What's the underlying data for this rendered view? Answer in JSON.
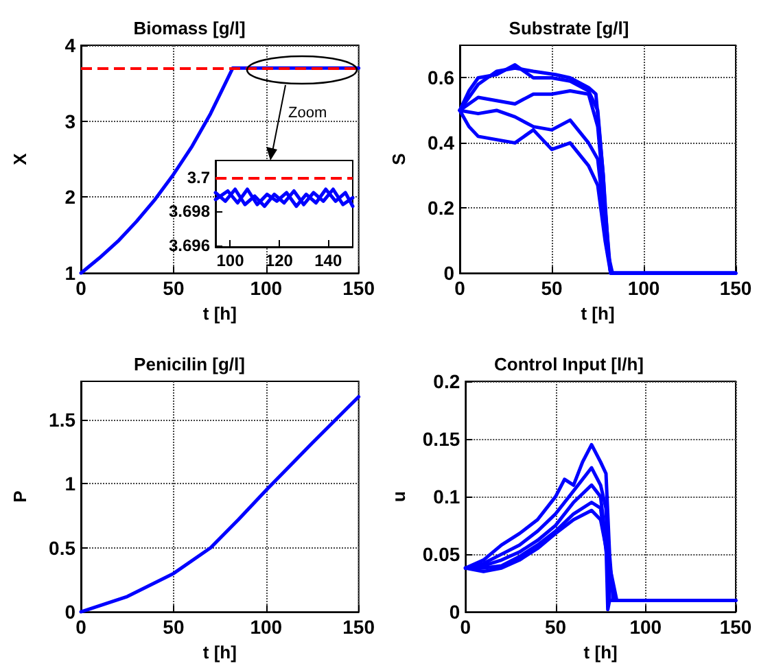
{
  "chart_data": [
    {
      "type": "line",
      "title": "Biomass [g/l]",
      "xlabel": "t [h]",
      "ylabel": "X",
      "xlim": [
        0,
        150
      ],
      "xticks": [
        0,
        50,
        100,
        150
      ],
      "ylim": [
        1,
        4
      ],
      "yticks": [
        1,
        2,
        3,
        4
      ],
      "grid": true,
      "annotations": [
        "Zoom"
      ],
      "ref_lines": [
        {
          "axis": "y",
          "value": 3.7,
          "color": "#ff0000",
          "line_style": "dashed"
        }
      ],
      "series": [
        {
          "color": "#0000ff",
          "x": [
            0,
            10,
            20,
            30,
            40,
            50,
            60,
            70,
            78,
            82,
            150
          ],
          "values": [
            1,
            1.2,
            1.42,
            1.68,
            1.97,
            2.3,
            2.67,
            3.1,
            3.5,
            3.7,
            3.7
          ]
        }
      ]
    },
    {
      "type": "line",
      "xlim": [
        94,
        150
      ],
      "xticks": [
        100,
        120,
        140
      ],
      "ylim": [
        3.6959,
        3.701
      ],
      "yticks": [
        3.696,
        3.698,
        3.7
      ],
      "ref_lines": [
        {
          "axis": "y",
          "value": 3.7,
          "color": "#ff0000",
          "line_style": "dashed"
        }
      ],
      "series": [
        {
          "color": "#0000ff",
          "x": [
            94,
            98,
            102,
            106,
            110,
            114,
            118,
            122,
            126,
            130,
            134,
            138,
            142,
            146,
            150
          ],
          "values": [
            3.6991,
            3.6986,
            3.6993,
            3.6984,
            3.6989,
            3.6983,
            3.699,
            3.6985,
            3.6992,
            3.6984,
            3.6991,
            3.6986,
            3.6993,
            3.6984,
            3.6988
          ]
        },
        {
          "color": "#0000ff",
          "x": [
            94,
            99,
            103,
            107,
            111,
            115,
            119,
            123,
            127,
            131,
            135,
            139,
            143,
            147,
            150
          ],
          "values": [
            3.6987,
            3.6992,
            3.6985,
            3.6993,
            3.6984,
            3.699,
            3.6986,
            3.6991,
            3.6983,
            3.699,
            3.6985,
            3.6993,
            3.6986,
            3.6991,
            3.6983
          ]
        }
      ]
    },
    {
      "type": "line",
      "title": "Substrate [g/l]",
      "xlabel": "t [h]",
      "ylabel": "S",
      "xlim": [
        0,
        150
      ],
      "xticks": [
        0,
        50,
        100,
        150
      ],
      "ylim": [
        0,
        0.7
      ],
      "yticks": [
        0,
        0.2,
        0.4,
        0.6
      ],
      "grid": true,
      "series": [
        {
          "color": "#0000ff",
          "x": [
            0,
            5,
            10,
            20,
            30,
            40,
            50,
            60,
            70,
            75,
            78,
            80,
            82,
            150
          ],
          "values": [
            0.5,
            0.56,
            0.6,
            0.61,
            0.64,
            0.6,
            0.6,
            0.59,
            0.56,
            0.5,
            0.3,
            0.1,
            0,
            0
          ]
        },
        {
          "color": "#0000ff",
          "x": [
            0,
            10,
            20,
            30,
            40,
            52,
            60,
            70,
            74,
            78,
            81,
            83,
            150
          ],
          "values": [
            0.5,
            0.58,
            0.62,
            0.63,
            0.62,
            0.61,
            0.6,
            0.57,
            0.55,
            0.3,
            0.05,
            0,
            0
          ]
        },
        {
          "color": "#0000ff",
          "x": [
            0,
            10,
            20,
            30,
            40,
            50,
            60,
            70,
            75,
            79,
            82,
            150
          ],
          "values": [
            0.5,
            0.54,
            0.53,
            0.52,
            0.55,
            0.55,
            0.56,
            0.55,
            0.45,
            0.2,
            0,
            0
          ]
        },
        {
          "color": "#0000ff",
          "x": [
            0,
            10,
            20,
            30,
            40,
            50,
            60,
            70,
            75,
            79,
            82,
            150
          ],
          "values": [
            0.5,
            0.49,
            0.5,
            0.48,
            0.45,
            0.44,
            0.47,
            0.4,
            0.35,
            0.15,
            0,
            0
          ]
        },
        {
          "color": "#0000ff",
          "x": [
            0,
            5,
            10,
            20,
            30,
            40,
            50,
            60,
            70,
            75,
            79,
            82,
            150
          ],
          "values": [
            0.5,
            0.45,
            0.42,
            0.41,
            0.4,
            0.44,
            0.38,
            0.4,
            0.33,
            0.27,
            0.1,
            0,
            0
          ]
        }
      ]
    },
    {
      "type": "line",
      "title": "Penicilin [g/l]",
      "xlabel": "t [h]",
      "ylabel": "P",
      "xlim": [
        0,
        150
      ],
      "xticks": [
        0,
        50,
        100,
        150
      ],
      "ylim": [
        0,
        1.8
      ],
      "yticks": [
        0,
        0.5,
        1,
        1.5
      ],
      "grid": true,
      "series": [
        {
          "color": "#0000ff",
          "x": [
            0,
            25,
            50,
            70,
            85,
            100,
            125,
            150
          ],
          "values": [
            0,
            0.12,
            0.3,
            0.5,
            0.72,
            0.95,
            1.32,
            1.68
          ]
        }
      ]
    },
    {
      "type": "line",
      "title": "Control Input [l/h]",
      "xlabel": "t [h]",
      "ylabel": "u",
      "xlim": [
        0,
        150
      ],
      "xticks": [
        0,
        50,
        100,
        150
      ],
      "ylim": [
        0,
        0.2
      ],
      "yticks": [
        0,
        0.05,
        0.1,
        0.15,
        0.2
      ],
      "grid": true,
      "series": [
        {
          "color": "#0000ff",
          "x": [
            0,
            10,
            20,
            30,
            40,
            50,
            55,
            60,
            65,
            70,
            75,
            78,
            80,
            82,
            150
          ],
          "values": [
            0.038,
            0.045,
            0.058,
            0.068,
            0.08,
            0.1,
            0.115,
            0.11,
            0.13,
            0.145,
            0.13,
            0.12,
            0.05,
            0.01,
            0.01
          ]
        },
        {
          "color": "#0000ff",
          "x": [
            0,
            10,
            20,
            30,
            40,
            50,
            60,
            70,
            75,
            78,
            80,
            150
          ],
          "values": [
            0.038,
            0.042,
            0.05,
            0.058,
            0.07,
            0.085,
            0.105,
            0.125,
            0.11,
            0.09,
            0.01,
            0.01
          ]
        },
        {
          "color": "#0000ff",
          "x": [
            0,
            10,
            20,
            30,
            40,
            50,
            60,
            70,
            75,
            78,
            79,
            80,
            150
          ],
          "values": [
            0.038,
            0.04,
            0.045,
            0.052,
            0.062,
            0.075,
            0.095,
            0.11,
            0.1,
            0.06,
            0.002,
            0.01,
            0.01
          ]
        },
        {
          "color": "#0000ff",
          "x": [
            0,
            10,
            20,
            30,
            40,
            50,
            60,
            70,
            75,
            80,
            83,
            150
          ],
          "values": [
            0.038,
            0.038,
            0.04,
            0.048,
            0.058,
            0.07,
            0.085,
            0.095,
            0.09,
            0.03,
            0.01,
            0.01
          ]
        },
        {
          "color": "#0000ff",
          "x": [
            0,
            10,
            20,
            30,
            40,
            50,
            60,
            70,
            75,
            80,
            84,
            150
          ],
          "values": [
            0.038,
            0.035,
            0.038,
            0.045,
            0.055,
            0.068,
            0.08,
            0.088,
            0.08,
            0.04,
            0.01,
            0.01
          ]
        }
      ]
    }
  ]
}
